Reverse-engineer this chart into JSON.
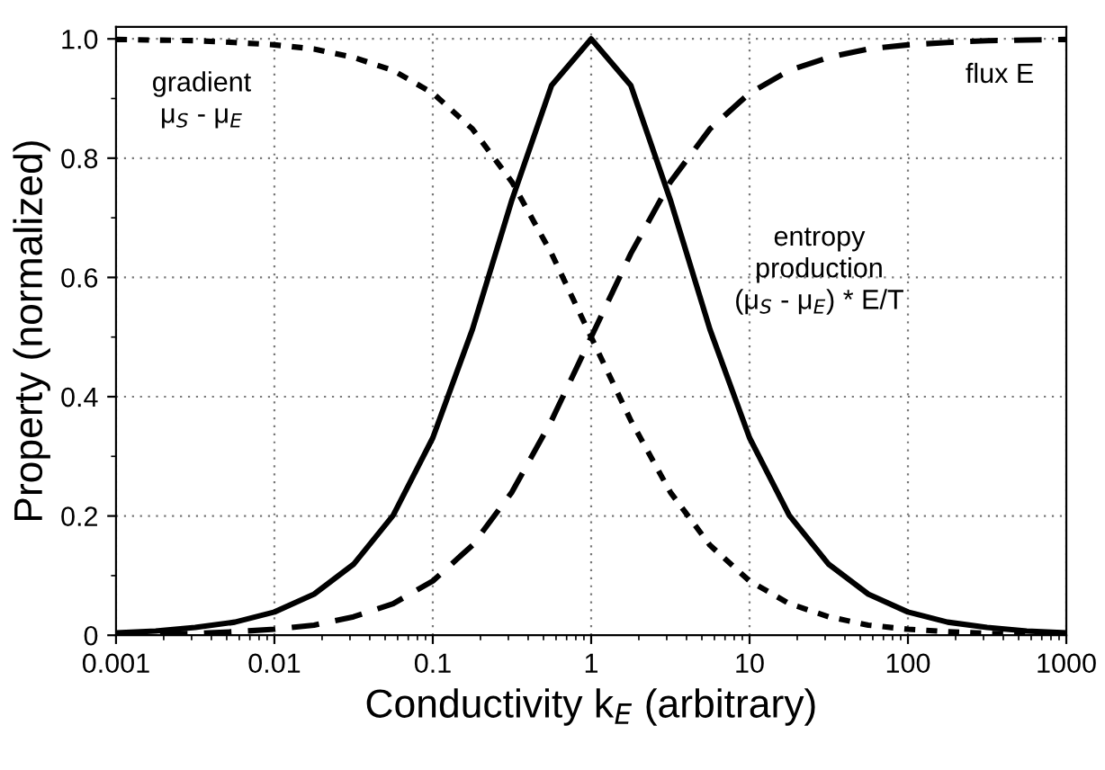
{
  "chart_data": {
    "type": "line",
    "xlabel": "Conductivity k$_{E}$ (arbitrary)",
    "ylabel": "Property (normalized)",
    "x": [
      0.001,
      0.00178,
      0.00316,
      0.00562,
      0.01,
      0.0178,
      0.0316,
      0.0562,
      0.1,
      0.178,
      0.316,
      0.562,
      1,
      1.78,
      3.16,
      5.62,
      10,
      17.8,
      31.6,
      56.2,
      100,
      178,
      316,
      562,
      1000
    ],
    "series": [
      {
        "name": "gradient\nμ$_{S}$ - μ$_{E}$",
        "color": "#000000",
        "line_style": "dotted",
        "values": [
          0.999,
          0.998,
          0.997,
          0.994,
          0.99,
          0.983,
          0.969,
          0.947,
          0.909,
          0.849,
          0.76,
          0.64,
          0.5,
          0.36,
          0.24,
          0.151,
          0.091,
          0.053,
          0.031,
          0.017,
          0.01,
          0.006,
          0.003,
          0.002,
          0.001
        ]
      },
      {
        "name": "flux E",
        "color": "#000000",
        "line_style": "dashed",
        "values": [
          0.001,
          0.002,
          0.003,
          0.006,
          0.01,
          0.017,
          0.031,
          0.053,
          0.091,
          0.151,
          0.24,
          0.36,
          0.5,
          0.64,
          0.76,
          0.849,
          0.909,
          0.947,
          0.969,
          0.983,
          0.99,
          0.994,
          0.997,
          0.998,
          0.999
        ]
      },
      {
        "name": "entropy\nproduction\n(μ$_{S}$ - μ$_{E}$) * E/T",
        "color": "#000000",
        "line_style": "solid",
        "values": [
          0.004,
          0.007,
          0.013,
          0.022,
          0.039,
          0.069,
          0.119,
          0.201,
          0.331,
          0.513,
          0.73,
          0.922,
          1.0,
          0.922,
          0.73,
          0.513,
          0.331,
          0.201,
          0.119,
          0.069,
          0.039,
          0.022,
          0.013,
          0.007,
          0.004
        ]
      }
    ],
    "log": "x",
    "xlim": [
      0.001,
      1000
    ],
    "xticks": [
      0.001,
      0.01,
      0.1,
      1,
      10,
      100,
      1000
    ],
    "ylim": [
      0,
      1.02
    ],
    "yticks": [
      {
        "value": 0,
        "label": "0"
      },
      0.2,
      0.4,
      0.6,
      0.8,
      {
        "value": 1.0,
        "label": "1.0"
      }
    ],
    "grid": true,
    "legend": false,
    "marker": "none"
  }
}
